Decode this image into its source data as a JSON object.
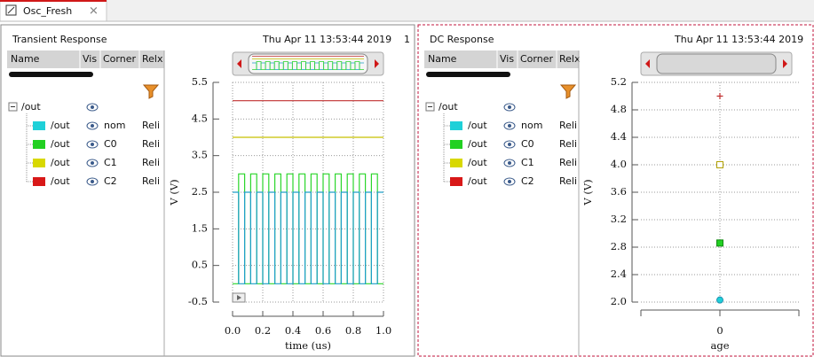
{
  "tab": "Osc_Fresh",
  "panels": [
    {
      "date": "Thu Apr 11 13:53:44 2019",
      "index": "1",
      "columns": [
        "Name",
        "Vis",
        "Corner",
        "Relx"
      ],
      "root": "/out",
      "rows": [
        {
          "name": "/out",
          "relx": "Reli"
        },
        {
          "name": "/out",
          "relx": "Reli"
        },
        {
          "name": "/out",
          "relx": "Reli"
        },
        {
          "name": "/out",
          "relx": "Reli"
        }
      ]
    },
    {
      "date": "Thu Apr 11 13:53:44 2019",
      "columns": [
        "Name",
        "Vis",
        "Corner",
        "Relx"
      ],
      "root": "/out",
      "rows": [
        {
          "name": "/out",
          "relx": "Reli"
        },
        {
          "name": "/out",
          "relx": "Reli"
        },
        {
          "name": "/out",
          "relx": "Reli"
        },
        {
          "name": "/out",
          "relx": "Reli"
        }
      ]
    }
  ],
  "chart_data": [
    {
      "type": "line",
      "title": "Transient Response",
      "x_label": "time (us)",
      "y_label": "V (V)",
      "xlim": [
        0,
        1.0
      ],
      "ylim": [
        -0.5,
        5.5
      ],
      "grid": true,
      "xticks": [
        {
          "value": 0,
          "label": "0.0"
        },
        0.2,
        0.4,
        0.6,
        0.8,
        {
          "value": 1.0,
          "label": "1.0"
        }
      ],
      "yticks": [
        -0.5,
        0.5,
        1.5,
        2.5,
        3.5,
        4.5,
        5.5
      ],
      "series": [
        {
          "name": "nom",
          "color": "#1fd0d8",
          "line_color": "#1e9fc8",
          "x": [
            0,
            0.04,
            0.04,
            0.08,
            0.08,
            0.12,
            0.12,
            0.16,
            0.16,
            0.2,
            0.2,
            0.24,
            0.24,
            0.28,
            0.28,
            0.32,
            0.32,
            0.36,
            0.36,
            0.4,
            0.4,
            0.44,
            0.44,
            0.48,
            0.48,
            0.52,
            0.52,
            0.56,
            0.56,
            0.6,
            0.6,
            0.64,
            0.64,
            0.68,
            0.68,
            0.72,
            0.72,
            0.76,
            0.76,
            0.8,
            0.8,
            0.84,
            0.84,
            0.88,
            0.88,
            0.92,
            0.92,
            0.96,
            0.96,
            1.0
          ],
          "values": [
            2.5,
            2.5,
            0,
            0,
            2.5,
            2.5,
            0,
            0,
            2.5,
            2.5,
            0,
            0,
            2.5,
            2.5,
            0,
            0,
            2.5,
            2.5,
            0,
            0,
            2.5,
            2.5,
            0,
            0,
            2.5,
            2.5,
            0,
            0,
            2.5,
            2.5,
            0,
            0,
            2.5,
            2.5,
            0,
            0,
            2.5,
            2.5,
            0,
            0,
            2.5,
            2.5,
            0,
            0,
            2.5,
            2.5,
            0,
            0,
            2.5,
            2.5
          ]
        },
        {
          "name": "C0",
          "color": "#22d022",
          "line_color": "#2bd62b",
          "x": [
            0,
            0.04,
            0.04,
            0.08,
            0.08,
            0.12,
            0.12,
            0.16,
            0.16,
            0.2,
            0.2,
            0.24,
            0.24,
            0.28,
            0.28,
            0.32,
            0.32,
            0.36,
            0.36,
            0.4,
            0.4,
            0.44,
            0.44,
            0.48,
            0.48,
            0.52,
            0.52,
            0.56,
            0.56,
            0.6,
            0.6,
            0.64,
            0.64,
            0.68,
            0.68,
            0.72,
            0.72,
            0.76,
            0.76,
            0.8,
            0.8,
            0.84,
            0.84,
            0.88,
            0.88,
            0.92,
            0.92,
            0.96,
            0.96,
            1.0
          ],
          "values": [
            0,
            0,
            3,
            3,
            0,
            0,
            3,
            3,
            0,
            0,
            3,
            3,
            0,
            0,
            3,
            3,
            0,
            0,
            3,
            3,
            0,
            0,
            3,
            3,
            0,
            0,
            3,
            3,
            0,
            0,
            3,
            3,
            0,
            0,
            3,
            3,
            0,
            0,
            3,
            3,
            0,
            0,
            3,
            3,
            0,
            0,
            3,
            3,
            0,
            0
          ]
        },
        {
          "name": "C1",
          "color": "#d8d800",
          "line_color": "#c8c000",
          "x": [
            0,
            1.0
          ],
          "values": [
            4.0,
            4.0
          ]
        },
        {
          "name": "C2",
          "color": "#d81818",
          "line_color": "#c03030",
          "x": [
            0,
            1.0
          ],
          "values": [
            5.0,
            5.0
          ]
        }
      ]
    },
    {
      "type": "scatter",
      "title": "DC Response",
      "x_label": "age",
      "y_label": "V (V)",
      "categories": [
        "0"
      ],
      "ylim": [
        2.0,
        5.2
      ],
      "grid": true,
      "yticks": [
        {
          "value": 2.0,
          "label": "2.0"
        },
        2.4,
        2.8,
        3.2,
        3.6,
        {
          "value": 4.0,
          "label": "4.0"
        },
        4.4,
        4.8,
        5.2
      ],
      "series": [
        {
          "name": "nom",
          "color": "#1fd0d8",
          "line_color": "#1e8fb0",
          "marker": "circle",
          "values": [
            2.03
          ]
        },
        {
          "name": "C0",
          "color": "#22d022",
          "line_color": "#128a12",
          "marker": "square",
          "values": [
            2.86
          ]
        },
        {
          "name": "C1",
          "color": "#d8d800",
          "line_color": "#b0a000",
          "marker": "square-open",
          "values": [
            4.0
          ]
        },
        {
          "name": "C2",
          "color": "#d81818",
          "line_color": "#c03030",
          "marker": "plus",
          "values": [
            5.0
          ]
        }
      ]
    }
  ]
}
